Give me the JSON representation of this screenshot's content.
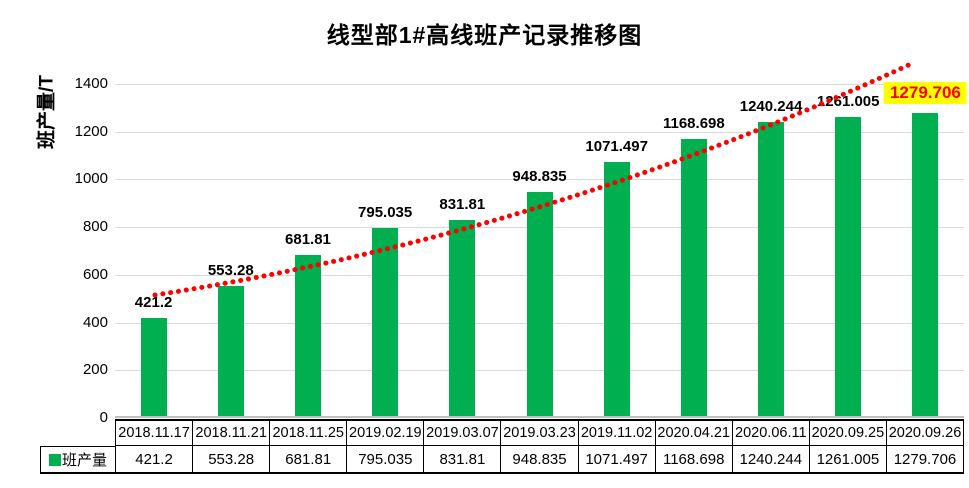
{
  "title": "线型部1#高线班产记录推移图",
  "y_axis": {
    "label": "班产量/T",
    "ticks": [
      0,
      200,
      400,
      600,
      800,
      1000,
      1200,
      1400
    ],
    "max": 1500
  },
  "legend": {
    "label": "班产量",
    "swatch_color": "#00B050"
  },
  "colors": {
    "bar": "#00B050",
    "trendline": "#FF0000",
    "gridline": "#d9d9d9",
    "axis": "#000000",
    "highlight_bg": "#FFFF00",
    "highlight_text": "#FF0000"
  },
  "chart_data": {
    "type": "bar",
    "title": "线型部1#高线班产记录推移图",
    "xlabel": "",
    "ylabel": "班产量/T",
    "ylim": [
      0,
      1500
    ],
    "yticks": [
      0,
      200,
      400,
      600,
      800,
      1000,
      1200,
      1400
    ],
    "grid": true,
    "legend_position": "bottom-table",
    "categories": [
      "2018.11.17",
      "2018.11.21",
      "2018.11.25",
      "2019.02.19",
      "2019.03.07",
      "2019.03.23",
      "2019.11.02",
      "2020.04.21",
      "2020.06.11",
      "2020.09.25",
      "2020.09.26"
    ],
    "series": [
      {
        "name": "班产量",
        "color": "#00B050",
        "values": [
          421.2,
          553.28,
          681.81,
          795.035,
          831.81,
          948.835,
          1071.497,
          1168.698,
          1240.244,
          1261.005,
          1279.706
        ]
      }
    ],
    "data_labels": [
      "421.2",
      "553.28",
      "681.81",
      "795.035",
      "831.81",
      "948.835",
      "1071.497",
      "1168.698",
      "1240.244",
      "1261.005",
      "1279.706"
    ],
    "annotations": {
      "highlighted_label": "1279.706",
      "highlight_bg": "#FFFF00",
      "highlight_text_color": "#FF0000"
    },
    "trendline": {
      "shape": "increasing-curve",
      "style": "dotted",
      "color": "#FF0000"
    }
  }
}
